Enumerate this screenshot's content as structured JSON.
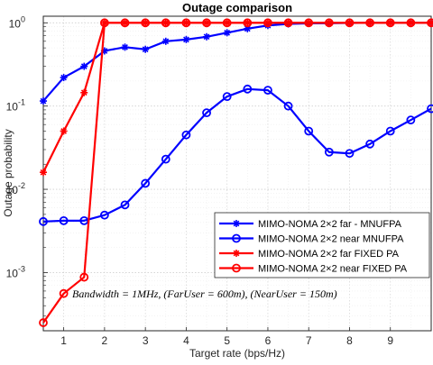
{
  "chart_data": {
    "type": "line",
    "title": "Outage comparison",
    "xlabel": "Target rate (bps/Hz)",
    "ylabel": "Outage probability",
    "xlim": [
      0.5,
      10
    ],
    "ylim": [
      0.0002,
      1.2
    ],
    "yscale": "log",
    "grid": true,
    "legend_position": "lower-right",
    "x_ticks": [
      1,
      2,
      3,
      4,
      5,
      6,
      7,
      8,
      9
    ],
    "x_tick_labels": [
      "1",
      "2",
      "3",
      "4",
      "5",
      "6",
      "7",
      "8",
      "9"
    ],
    "y_ticks": [
      0.001,
      0.01,
      0.1,
      1
    ],
    "y_tick_bases": [
      "10",
      "10",
      "10",
      "10"
    ],
    "y_tick_exponents": [
      "-3",
      "-2",
      "-1",
      "0"
    ],
    "annotation": "Bandwidth = 1MHz, (FarUser = 600m), (NearUser = 150m)",
    "series": [
      {
        "name": "MIMO-NOMA 2×2 far - MNUFPA",
        "color": "#0000ff",
        "marker": "star",
        "x": [
          0.5,
          1,
          1.5,
          2,
          2.5,
          3,
          3.5,
          4,
          4.5,
          5,
          5.5,
          6,
          6.5,
          7,
          7.5,
          8,
          8.5,
          9,
          9.5,
          10
        ],
        "y": [
          0.115,
          0.22,
          0.3,
          0.46,
          0.51,
          0.48,
          0.6,
          0.63,
          0.68,
          0.76,
          0.85,
          0.93,
          0.97,
          0.985,
          0.99,
          0.995,
          1.0,
          1.0,
          1.0,
          1.0
        ]
      },
      {
        "name": "MIMO-NOMA 2×2 near  MNUFPA",
        "color": "#0000ff",
        "marker": "circle",
        "x": [
          0.5,
          1,
          1.5,
          2,
          2.5,
          3,
          3.5,
          4,
          4.5,
          5,
          5.5,
          6,
          6.5,
          7,
          7.5,
          8,
          8.5,
          9,
          9.5,
          10
        ],
        "y": [
          0.0041,
          0.0042,
          0.0042,
          0.0049,
          0.0065,
          0.0118,
          0.023,
          0.045,
          0.083,
          0.13,
          0.16,
          0.155,
          0.1,
          0.05,
          0.028,
          0.027,
          0.035,
          0.05,
          0.068,
          0.093
        ]
      },
      {
        "name": "MIMO-NOMA 2×2 far FIXED PA",
        "color": "#ff0000",
        "marker": "star",
        "x": [
          0.5,
          1,
          1.5,
          2,
          2.5,
          3,
          3.5,
          4,
          4.5,
          5,
          5.5,
          6,
          6.5,
          7,
          7.5,
          8,
          8.5,
          9,
          9.5,
          10
        ],
        "y": [
          0.016,
          0.05,
          0.145,
          1,
          1,
          1,
          1,
          1,
          1,
          1,
          1,
          1,
          1,
          1,
          1,
          1,
          1,
          1,
          1,
          1
        ]
      },
      {
        "name": "MIMO-NOMA 2×2 near FIXED PA",
        "color": "#ff0000",
        "marker": "circle",
        "x": [
          0.5,
          1,
          1.5,
          2,
          2.5,
          3,
          3.5,
          4,
          4.5,
          5,
          5.5,
          6,
          6.5,
          7,
          7.5,
          8,
          8.5,
          9,
          9.5,
          10
        ],
        "y": [
          0.00025,
          0.00056,
          0.00088,
          1,
          1,
          1,
          1,
          1,
          1,
          1,
          1,
          1,
          1,
          1,
          1,
          1,
          1,
          1,
          1,
          1
        ]
      }
    ]
  }
}
